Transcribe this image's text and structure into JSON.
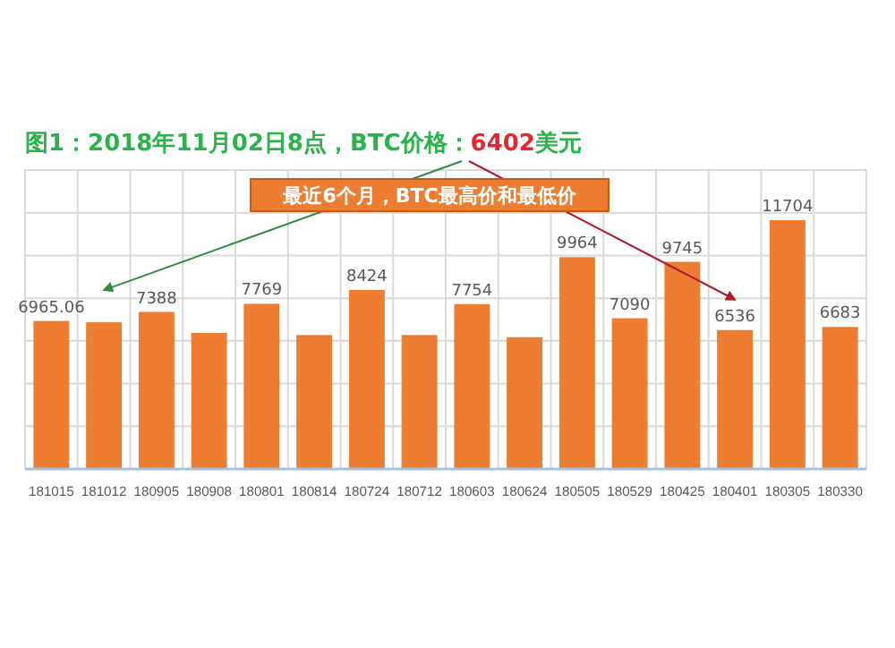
{
  "chart_data": {
    "type": "bar",
    "title": "图1：2018年11月02日8点，BTC价格：6402美元",
    "annotations": [
      "最近6个月，BTC最高价和最低价"
    ],
    "categories": [
      "181015",
      "181012",
      "180905",
      "180908",
      "180801",
      "180814",
      "180724",
      "180712",
      "180603",
      "180624",
      "180505",
      "180529",
      "180425",
      "180401",
      "180305",
      "180330"
    ],
    "values": [
      6965.06,
      6900,
      7388,
      6400,
      7769,
      6300,
      8424,
      6300,
      7754,
      6200,
      9964,
      7090,
      9745,
      6536,
      11704,
      6683
    ],
    "value_labels": [
      "6965.06",
      null,
      "7388",
      null,
      "7769",
      null,
      "8424",
      null,
      "7754",
      null,
      "9964",
      "7090",
      "9745",
      "6536",
      "11704",
      "6683"
    ],
    "color": "#ed7d31",
    "grid": true
  }
}
